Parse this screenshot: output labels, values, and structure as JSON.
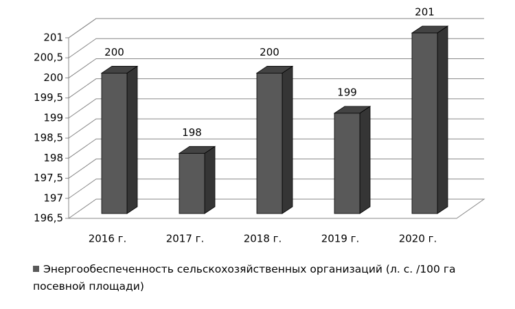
{
  "chart_data": {
    "type": "bar3d",
    "categories": [
      "2016 г.",
      "2017 г.",
      "2018 г.",
      "2019 г.",
      "2020 г."
    ],
    "series": [
      {
        "name": "Энергообеспеченность сельскохозяйственных организаций (л. с. /100 га посевной площади)",
        "color": "#595959",
        "values": [
          200,
          198,
          200,
          199,
          201
        ]
      }
    ],
    "ylim": [
      196.5,
      201
    ],
    "yticks": [
      {
        "value": 196.5,
        "label": "196,5"
      },
      197,
      {
        "value": 197.5,
        "label": "197,5"
      },
      198,
      {
        "value": 198.5,
        "label": "198,5"
      },
      199,
      {
        "value": 199.5,
        "label": "199,5"
      },
      200,
      {
        "value": 200.5,
        "label": "200,5"
      },
      201
    ],
    "grid": true,
    "legend": "bottom"
  }
}
